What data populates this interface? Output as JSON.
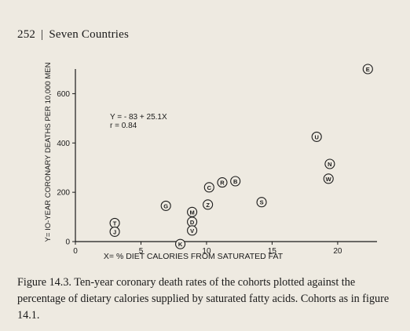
{
  "header": {
    "page_number": "252",
    "separator": "|",
    "book_title": "Seven Countries"
  },
  "caption": "Figure 14.3. Ten-year coronary death rates of the cohorts plotted against the percentage of dietary calories supplied by saturated fatty acids. Cohorts as in figure 14.1.",
  "chart_data": {
    "type": "scatter",
    "title": "",
    "xlabel": "X= % DIET CALORIES FROM SATURATED FAT",
    "ylabel": "Y= IO-YEAR CORONARY DEATHS PER 10,000 MEN",
    "xlim": [
      0,
      23
    ],
    "ylim": [
      0,
      700
    ],
    "xticks": [
      0,
      5,
      10,
      15,
      20
    ],
    "yticks": [
      0,
      200,
      400,
      600
    ],
    "xtick_labels": [
      "0",
      "5",
      "10",
      "15",
      "20"
    ],
    "ytick_labels": [
      "0",
      "200",
      "400",
      "600"
    ],
    "grid": false,
    "regression": {
      "equation": "Y = - 83 + 25.1X",
      "r_label": "r = 0.84",
      "intercept": -83,
      "slope": 25.1,
      "r": 0.84
    },
    "points": [
      {
        "label": "E",
        "x": 22.3,
        "y": 700
      },
      {
        "label": "U",
        "x": 18.4,
        "y": 425
      },
      {
        "label": "N",
        "x": 19.4,
        "y": 315
      },
      {
        "label": "W",
        "x": 19.3,
        "y": 255
      },
      {
        "label": "B",
        "x": 12.2,
        "y": 245
      },
      {
        "label": "R",
        "x": 11.2,
        "y": 240
      },
      {
        "label": "C",
        "x": 10.2,
        "y": 220
      },
      {
        "label": "S",
        "x": 14.2,
        "y": 160
      },
      {
        "label": "Z",
        "x": 10.1,
        "y": 150
      },
      {
        "label": "G",
        "x": 6.9,
        "y": 145
      },
      {
        "label": "M",
        "x": 8.9,
        "y": 120
      },
      {
        "label": "D",
        "x": 8.9,
        "y": 80
      },
      {
        "label": "V",
        "x": 8.9,
        "y": 45
      },
      {
        "label": "T",
        "x": 3.0,
        "y": 75
      },
      {
        "label": "J",
        "x": 3.0,
        "y": 40
      },
      {
        "label": "K",
        "x": 8.0,
        "y": -10
      }
    ]
  }
}
